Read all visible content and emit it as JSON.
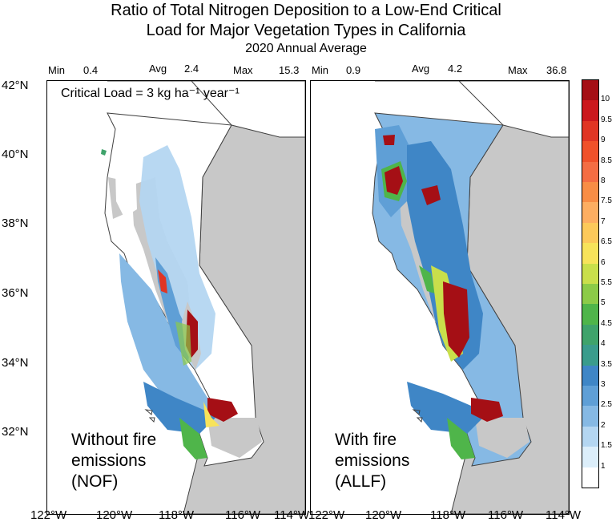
{
  "title": {
    "line1": "Ratio of Total Nitrogen Deposition to a Low-End Critical",
    "line2": "Load for Major Vegetation Types in California",
    "line3": "2020 Annual Average"
  },
  "critical_load": "Critical Load = 3 kg ha⁻¹ year⁻¹",
  "panels": [
    {
      "label_lines": [
        "Without fire",
        "emissions",
        "(NOF)"
      ],
      "stats": {
        "min_label": "Min",
        "min": "0.4",
        "avg_label": "Avg",
        "avg": "2.4",
        "max_label": "Max",
        "max": "15.3"
      }
    },
    {
      "label_lines": [
        "With fire",
        "emissions",
        "(ALLF)"
      ],
      "stats": {
        "min_label": "Min",
        "min": "0.9",
        "avg_label": "Avg",
        "avg": "4.2",
        "max_label": "Max",
        "max": "36.8"
      }
    }
  ],
  "lat_labels": [
    "42°N",
    "40°N",
    "38°N",
    "36°N",
    "34°N",
    "32°N"
  ],
  "lon_labels": [
    "122°W",
    "120°W",
    "118°W",
    "116°W",
    "114°W"
  ],
  "colorbar": {
    "labels": [
      "10",
      "9.5",
      "9",
      "8.5",
      "8",
      "7.5",
      "7",
      "6.5",
      "6",
      "5.5",
      "5",
      "4.5",
      "4",
      "3.5",
      "3",
      "2.5",
      "2",
      "1.5",
      "1"
    ],
    "colors": [
      "#a50f15",
      "#cb181d",
      "#e03524",
      "#f0512a",
      "#f46d43",
      "#f88d45",
      "#fdae61",
      "#fcc95a",
      "#f7e35a",
      "#c9df4b",
      "#8ccb48",
      "#4fb54a",
      "#3fa36b",
      "#3a9c8c",
      "#3f86c6",
      "#5f9fd6",
      "#86b9e4",
      "#b4d6f1",
      "#dceefa",
      "#ffffff"
    ]
  },
  "colors": {
    "land_gray": "#c8c8c8",
    "border": "#404040"
  }
}
